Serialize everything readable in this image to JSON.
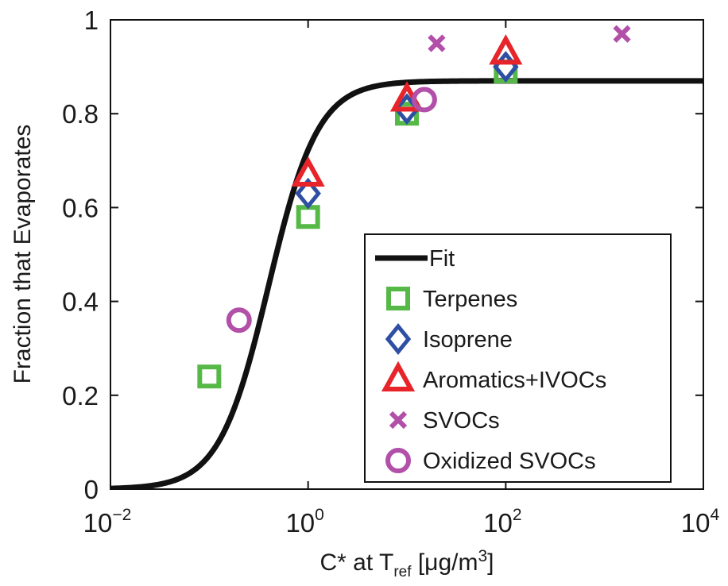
{
  "chart_data": {
    "type": "scatter",
    "xscale": "log",
    "xlim": [
      0.01,
      10000
    ],
    "ylim": [
      0,
      1
    ],
    "grid": false,
    "legend_position": "lower-right",
    "xlabel_parts": {
      "base": "C* at T",
      "sub": "ref",
      "rest": " [μg/m",
      "sup": "3",
      "end": "]"
    },
    "ylabel": "Fraction that Evaporates",
    "x_ticks": [
      {
        "value": 0.01,
        "base": "10",
        "exp": "−2"
      },
      {
        "value": 1,
        "base": "10",
        "exp": "0"
      },
      {
        "value": 100,
        "base": "10",
        "exp": "2"
      },
      {
        "value": 10000,
        "base": "10",
        "exp": "4"
      }
    ],
    "y_ticks": [
      {
        "value": 0,
        "label": "0"
      },
      {
        "value": 0.2,
        "label": "0.2"
      },
      {
        "value": 0.4,
        "label": "0.4"
      },
      {
        "value": 0.6,
        "label": "0.6"
      },
      {
        "value": 0.8,
        "label": "0.8"
      },
      {
        "value": 1,
        "label": "1"
      }
    ],
    "fit": {
      "name": "Fit",
      "color": "#111111",
      "plateau": 0.87,
      "c_half": 0.4,
      "log_width": 0.25
    },
    "series": [
      {
        "name": "Terpenes",
        "marker": "square",
        "color": "#56B947",
        "points": [
          {
            "x": 0.1,
            "y": 0.24
          },
          {
            "x": 1,
            "y": 0.58
          },
          {
            "x": 10,
            "y": 0.8
          },
          {
            "x": 100,
            "y": 0.89
          }
        ]
      },
      {
        "name": "Isoprene",
        "marker": "diamond",
        "color": "#2E4FA3",
        "points": [
          {
            "x": 1,
            "y": 0.63
          },
          {
            "x": 10,
            "y": 0.81
          },
          {
            "x": 100,
            "y": 0.9
          }
        ]
      },
      {
        "name": "Aromatics+IVOCs",
        "marker": "triangle",
        "color": "#E8242B",
        "points": [
          {
            "x": 1,
            "y": 0.67
          },
          {
            "x": 10,
            "y": 0.83
          },
          {
            "x": 100,
            "y": 0.93
          }
        ]
      },
      {
        "name": "SVOCs",
        "marker": "x",
        "color": "#B24FA9",
        "points": [
          {
            "x": 20,
            "y": 0.95
          },
          {
            "x": 1500,
            "y": 0.97
          }
        ]
      },
      {
        "name": "Oxidized SVOCs",
        "marker": "circle",
        "color": "#B24FA9",
        "points": [
          {
            "x": 0.2,
            "y": 0.36
          },
          {
            "x": 15,
            "y": 0.83
          }
        ]
      }
    ]
  }
}
